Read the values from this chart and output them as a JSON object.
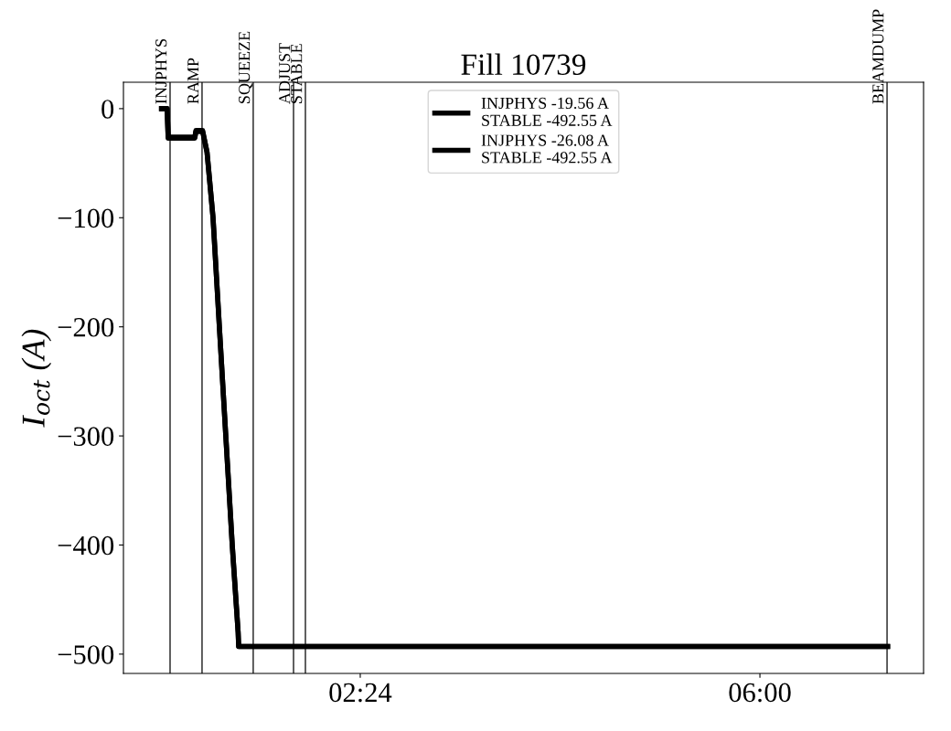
{
  "chart_data": {
    "type": "line",
    "title": "Fill 10739",
    "ylabel": "I$_{oct}$ (A)",
    "series": [
      {
        "name": "INJPHYS -19.56 A\nSTABLE -492.55 A",
        "color": "#000000",
        "x": [
          0.61,
          0.66,
          0.67,
          0.91,
          0.92,
          0.98,
          1.02,
          1.074,
          1.131,
          1.189,
          1.247,
          1.3,
          1.305,
          7.15
        ],
        "values": [
          0,
          0,
          -26,
          -26,
          -20,
          -20,
          -40,
          -100,
          -200,
          -300,
          -400,
          -480,
          -493,
          -493
        ]
      },
      {
        "name": "INJPHYS -26.08 A\nSTABLE -492.55 A",
        "color": "#000000",
        "x": [
          0.61,
          0.66,
          0.67,
          0.91,
          0.92,
          0.98,
          1.02,
          1.074,
          1.131,
          1.189,
          1.247,
          1.3,
          1.305,
          7.15
        ],
        "values": [
          0,
          0,
          -27,
          -27,
          -21,
          -21,
          -40,
          -100,
          -200,
          -300,
          -400,
          -480,
          -493,
          -493
        ]
      }
    ],
    "xlim": [
      0.267,
      7.474
    ],
    "xticks": [
      {
        "value": 2.4,
        "label": "02:24"
      },
      {
        "value": 6.0,
        "label": "06:00"
      }
    ],
    "ylim": [
      -517.7,
      24.2
    ],
    "yticks": [
      {
        "value": 0,
        "label": "0"
      },
      {
        "value": -100,
        "label": "−100"
      },
      {
        "value": -200,
        "label": "−200"
      },
      {
        "value": -300,
        "label": "−300"
      },
      {
        "value": -400,
        "label": "−400"
      },
      {
        "value": -500,
        "label": "−500"
      }
    ],
    "ref_lines": [
      {
        "axis": "x",
        "value": 0.687,
        "label": "INJPHYS",
        "color": "#000000"
      },
      {
        "axis": "x",
        "value": 0.975,
        "label": "RAMP",
        "color": "#000000"
      },
      {
        "axis": "x",
        "value": 1.436,
        "label": "SQUEEZE",
        "color": "#000000"
      },
      {
        "axis": "x",
        "value": 1.799,
        "label": "ADJUST",
        "color": "#000000"
      },
      {
        "axis": "x",
        "value": 1.906,
        "label": "STABLE",
        "color": "#000000"
      },
      {
        "axis": "x",
        "value": 7.145,
        "label": "BEAMDUMP",
        "color": "#000000"
      }
    ],
    "legend": "top",
    "grid": false,
    "line_style": "solid",
    "marker": "none"
  }
}
